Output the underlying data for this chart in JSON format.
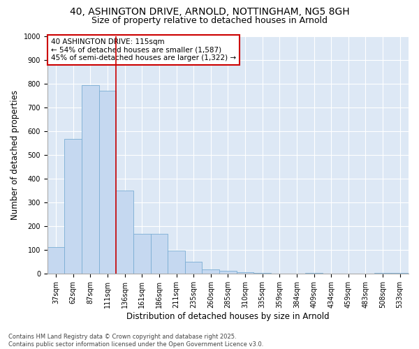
{
  "title_line1": "40, ASHINGTON DRIVE, ARNOLD, NOTTINGHAM, NG5 8GH",
  "title_line2": "Size of property relative to detached houses in Arnold",
  "xlabel": "Distribution of detached houses by size in Arnold",
  "ylabel": "Number of detached properties",
  "categories": [
    "37sqm",
    "62sqm",
    "87sqm",
    "111sqm",
    "136sqm",
    "161sqm",
    "186sqm",
    "211sqm",
    "235sqm",
    "260sqm",
    "285sqm",
    "310sqm",
    "335sqm",
    "359sqm",
    "384sqm",
    "409sqm",
    "434sqm",
    "459sqm",
    "483sqm",
    "508sqm",
    "533sqm"
  ],
  "values": [
    113,
    567,
    793,
    770,
    350,
    167,
    167,
    97,
    52,
    18,
    12,
    8,
    5,
    0,
    0,
    5,
    0,
    0,
    0,
    5,
    5
  ],
  "bar_color": "#c5d8f0",
  "bar_edge_color": "#7aadd4",
  "reference_line_color": "#cc0000",
  "annotation_text": "40 ASHINGTON DRIVE: 115sqm\n← 54% of detached houses are smaller (1,587)\n45% of semi-detached houses are larger (1,322) →",
  "annotation_box_edge_color": "#cc0000",
  "annotation_box_facecolor": "white",
  "ylim": [
    0,
    1000
  ],
  "yticks": [
    0,
    100,
    200,
    300,
    400,
    500,
    600,
    700,
    800,
    900,
    1000
  ],
  "bg_color": "#dde8f5",
  "grid_color": "#c0cfe0",
  "footer_text": "Contains HM Land Registry data © Crown copyright and database right 2025.\nContains public sector information licensed under the Open Government Licence v3.0.",
  "title_fontsize": 10,
  "subtitle_fontsize": 9,
  "tick_fontsize": 7,
  "label_fontsize": 8.5,
  "annotation_fontsize": 7.5,
  "footer_fontsize": 6
}
